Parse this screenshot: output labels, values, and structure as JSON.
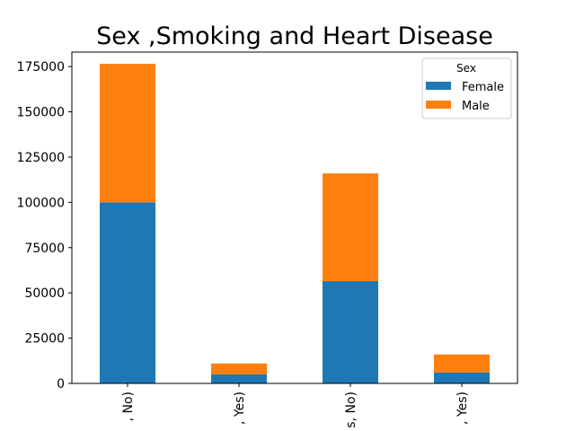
{
  "chart_data": {
    "type": "bar",
    "stacked": true,
    "title": "Sex ,Smoking and Heart Disease",
    "xlabel": "",
    "ylabel": "",
    "x_tick_labels_visible": [
      ", No)",
      ", Yes)",
      "s, No)",
      ", Yes)"
    ],
    "x_tick_rotation": 90,
    "series": [
      {
        "name": "Female",
        "color": "#1f77b4",
        "values": [
          100000,
          5000,
          56500,
          6000
        ]
      },
      {
        "name": "Male",
        "color": "#ff7f0e",
        "values": [
          76500,
          6000,
          59500,
          10000
        ]
      }
    ],
    "ylim": [
      0,
      183000
    ],
    "yticks": [
      0,
      25000,
      50000,
      75000,
      100000,
      125000,
      150000,
      175000
    ],
    "grid": false,
    "legend": {
      "title": "Sex",
      "placement": "top-right"
    }
  }
}
